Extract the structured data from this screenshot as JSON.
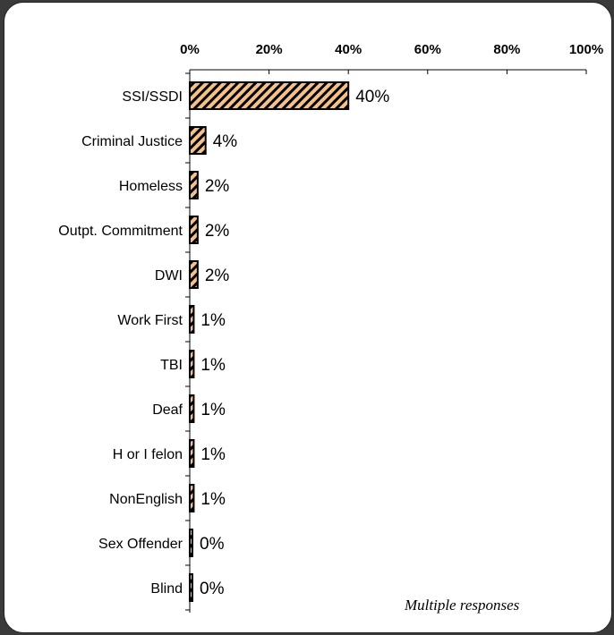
{
  "chart_data": {
    "type": "bar",
    "orientation": "horizontal",
    "categories": [
      "SSI/SSDI",
      "Criminal Justice",
      "Homeless",
      "Outpt. Commitment",
      "DWI",
      "Work First",
      "TBI",
      "Deaf",
      "H or I felon",
      "NonEnglish",
      "Sex Offender",
      "Blind"
    ],
    "values": [
      40,
      4,
      2,
      2,
      2,
      1,
      1,
      1,
      1,
      1,
      0,
      0
    ],
    "value_labels": [
      "40%",
      "4%",
      "2%",
      "2%",
      "2%",
      "1%",
      "1%",
      "1%",
      "1%",
      "1%",
      "0%",
      "0%"
    ],
    "xlim": [
      0,
      100
    ],
    "xticks": [
      "0%",
      "20%",
      "40%",
      "60%",
      "80%",
      "100%"
    ],
    "xaxis_position": "top",
    "grid": false,
    "legend": "none",
    "bar_fill": "#f5c08a",
    "bar_hatch": "#000000",
    "annotation": "Multiple responses"
  }
}
